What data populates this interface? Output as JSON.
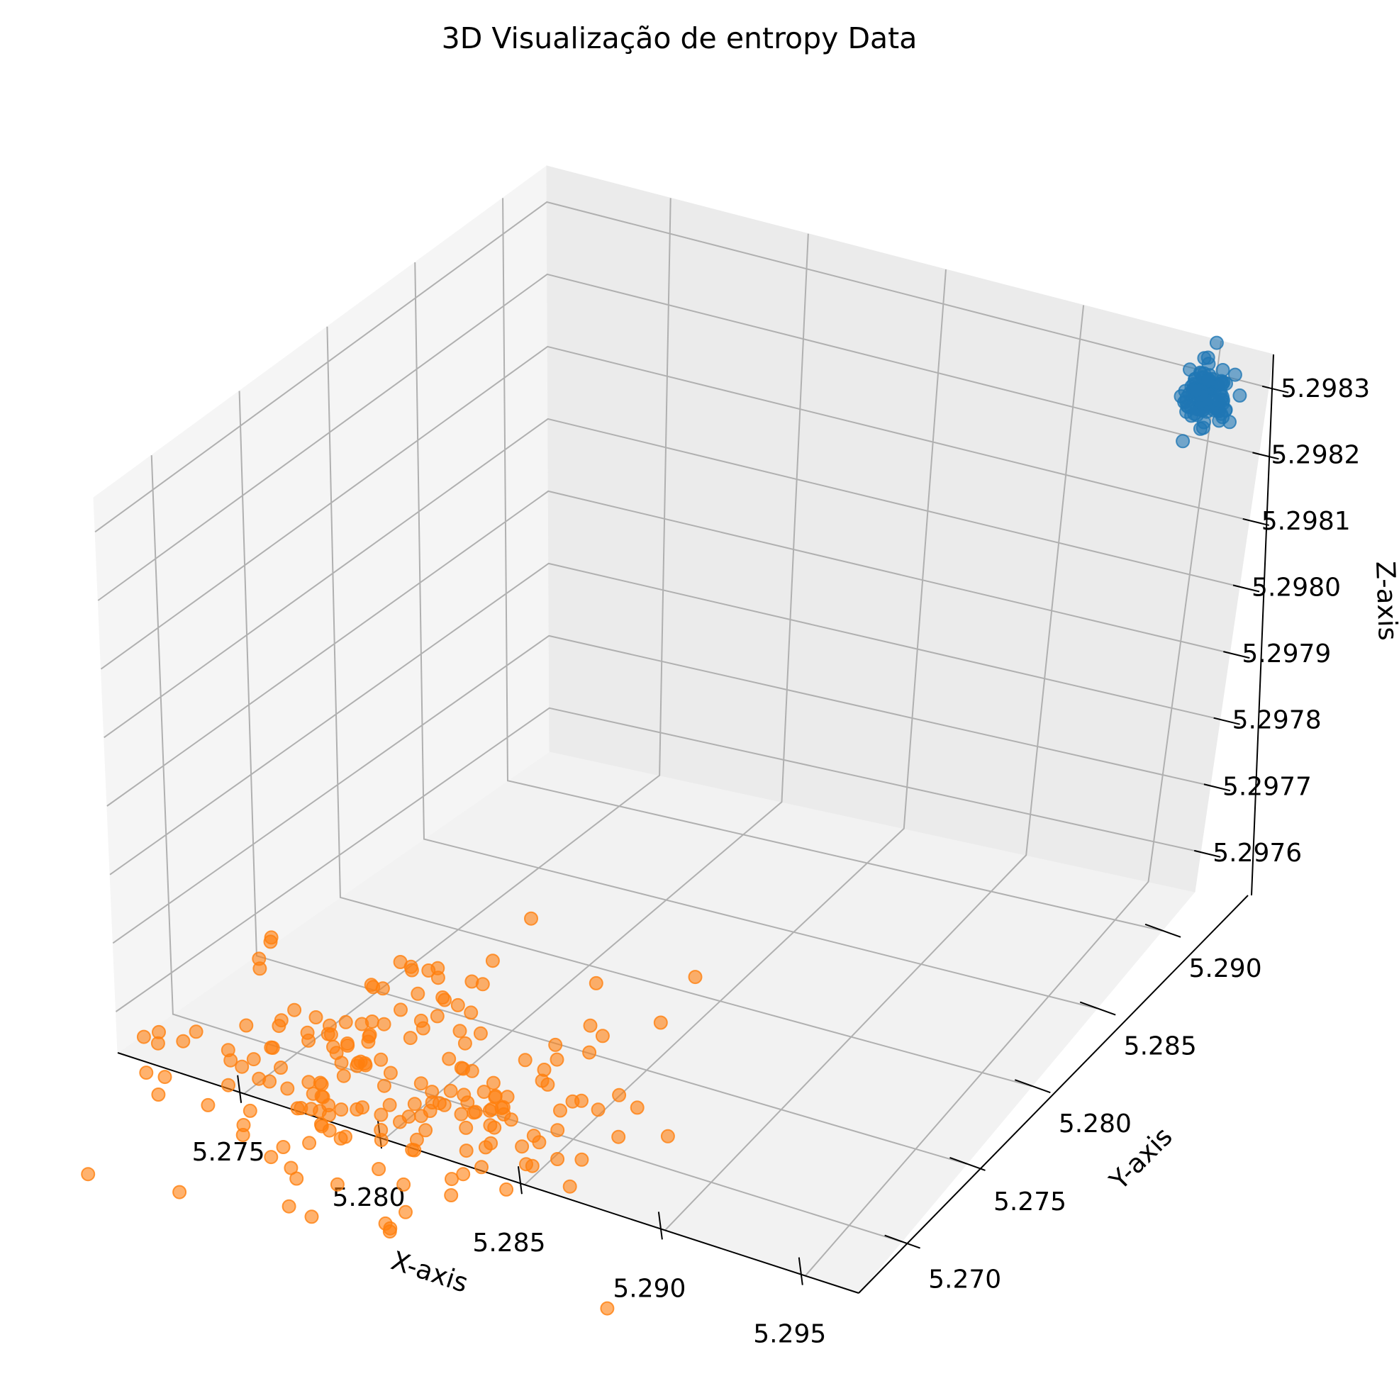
{
  "chart_data": {
    "type": "scatter",
    "projection": "3d",
    "title": "3D Visualização de entropy Data",
    "xlabel": "X-axis",
    "ylabel": "Y-axis",
    "zlabel": "Z-axis",
    "xlim": [
      5.2705,
      5.2969
    ],
    "ylim": [
      5.2667,
      5.2925
    ],
    "zlim": [
      5.29754,
      5.29835
    ],
    "xticks": [
      "5.275",
      "5.280",
      "5.285",
      "5.290",
      "5.295"
    ],
    "yticks": [
      "5.270",
      "5.275",
      "5.280",
      "5.285",
      "5.290"
    ],
    "zticks": [
      "5.2976",
      "5.2977",
      "5.2978",
      "5.2979",
      "5.2980",
      "5.2981",
      "5.2982",
      "5.2983"
    ],
    "grid": true,
    "legend": "none",
    "series": [
      {
        "color": "#1f77b4",
        "alpha": 0.6,
        "center": [
          5.295,
          5.2919,
          5.29828
        ],
        "spread": [
          0.0004,
          0.0004,
          2e-05
        ],
        "count": 120
      },
      {
        "color": "#ff7f0e",
        "alpha": 0.6,
        "center": [
          5.2795,
          5.269,
          5.29757
        ],
        "spread": [
          0.0035,
          0.0035,
          2e-05
        ],
        "count": 200
      }
    ]
  }
}
